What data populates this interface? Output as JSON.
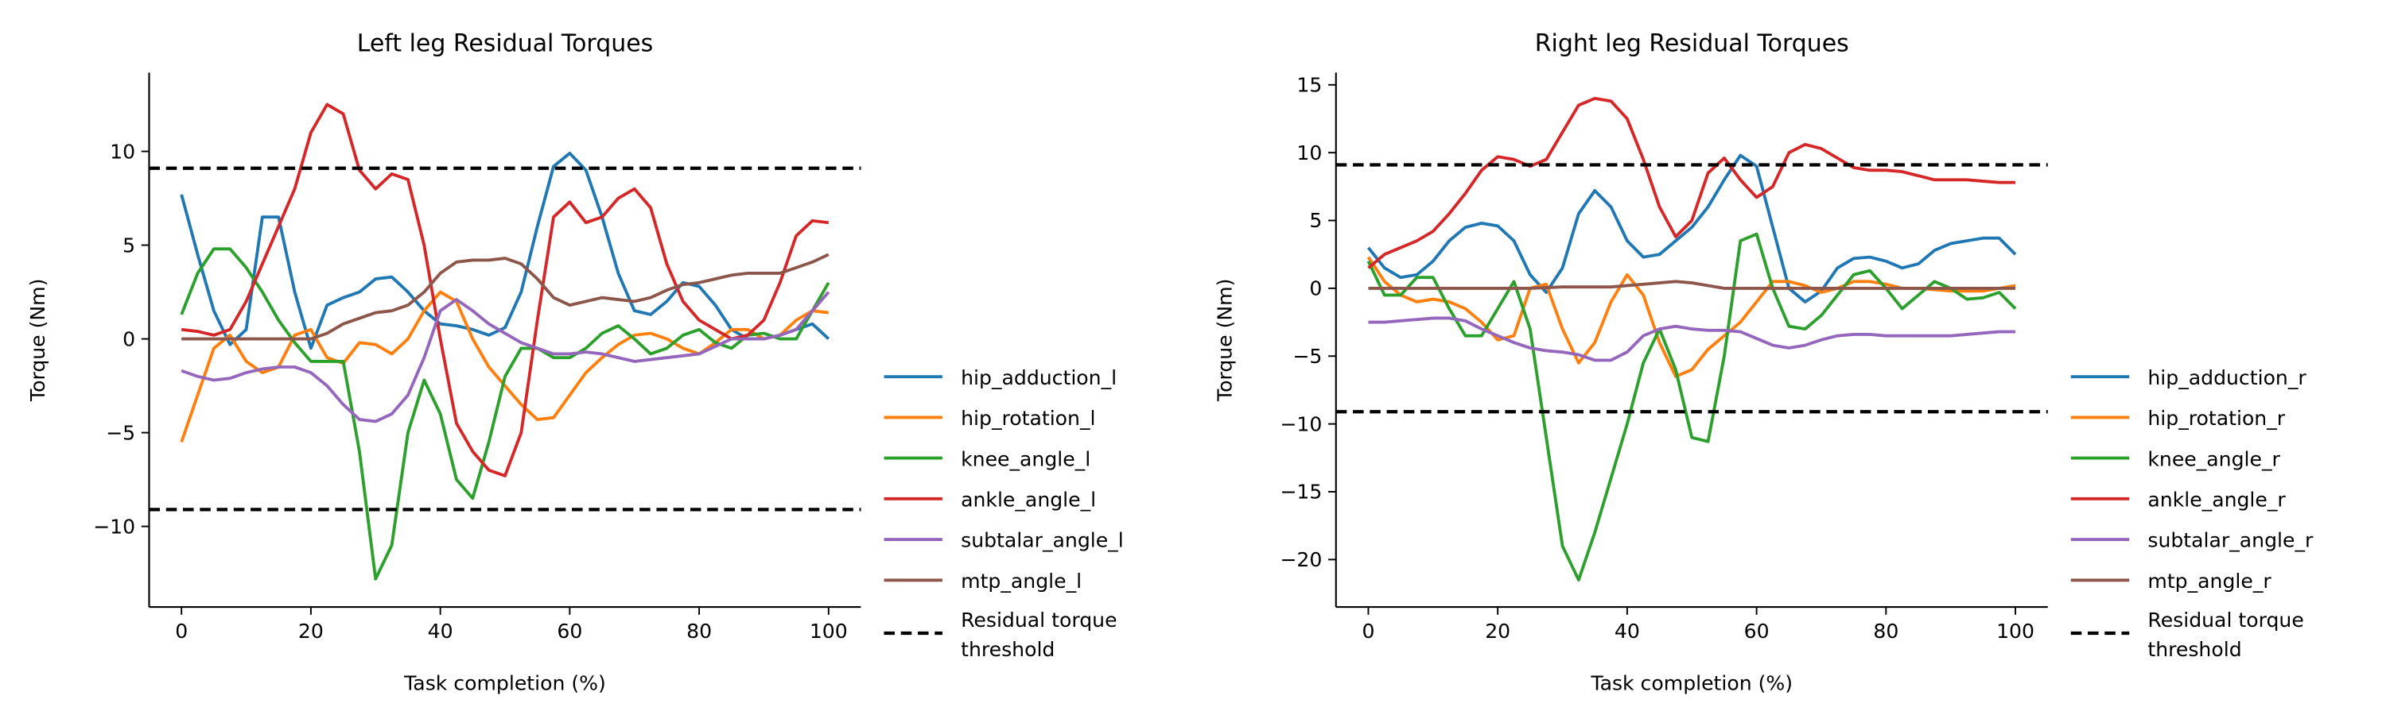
{
  "chart_data": [
    {
      "type": "line",
      "title": "Left leg Residual Torques",
      "xlabel": "Task completion (%)",
      "ylabel": "Torque (Nm)",
      "xlim": [
        -5,
        105
      ],
      "ylim": [
        -14.3,
        14.2
      ],
      "xticks": [
        0,
        20,
        40,
        60,
        80,
        100
      ],
      "yticks": [
        {
          "value": -10,
          "label": "−10"
        },
        {
          "value": -5,
          "label": "−5"
        },
        0,
        5,
        10
      ],
      "x": [
        0,
        2.5,
        5,
        7.5,
        10,
        12.5,
        15,
        17.5,
        20,
        22.5,
        25,
        27.5,
        30,
        32.5,
        35,
        37.5,
        40,
        42.5,
        45,
        47.5,
        50,
        52.5,
        55,
        57.5,
        60,
        62.5,
        65,
        67.5,
        70,
        72.5,
        75,
        77.5,
        80,
        82.5,
        85,
        87.5,
        90,
        92.5,
        95,
        97.5,
        100
      ],
      "series": [
        {
          "name": "hip_adduction_l",
          "color": "#1f77b4",
          "values": [
            7.7,
            4.5,
            1.5,
            -0.3,
            0.5,
            6.5,
            6.5,
            2.5,
            -0.5,
            1.8,
            2.2,
            2.5,
            3.2,
            3.3,
            2.5,
            1.5,
            0.8,
            0.7,
            0.5,
            0.2,
            0.6,
            2.5,
            6,
            9.2,
            9.9,
            9,
            6.5,
            3.5,
            1.5,
            1.3,
            2,
            3,
            2.8,
            1.8,
            0.5,
            0,
            0,
            0.2,
            0.5,
            0.8,
            0
          ]
        },
        {
          "name": "hip_rotation_l",
          "color": "#ff7f0e",
          "values": [
            -5.5,
            -3,
            -0.5,
            0.2,
            -1.2,
            -1.8,
            -1.5,
            0.2,
            0.5,
            -1,
            -1.3,
            -0.2,
            -0.3,
            -0.8,
            0,
            1.5,
            2.5,
            2,
            0,
            -1.5,
            -2.5,
            -3.5,
            -4.3,
            -4.2,
            -3,
            -1.8,
            -1,
            -0.3,
            0.2,
            0.3,
            0,
            -0.5,
            -0.8,
            -0.2,
            0.5,
            0.5,
            0,
            0.2,
            1,
            1.5,
            1.4
          ]
        },
        {
          "name": "knee_angle_l",
          "color": "#2ca02c",
          "values": [
            1.3,
            3.5,
            4.8,
            4.8,
            3.8,
            2.5,
            1,
            -0.2,
            -1.2,
            -1.2,
            -1.2,
            -6,
            -12.8,
            -11,
            -5,
            -2.2,
            -4,
            -7.5,
            -8.5,
            -5.5,
            -2,
            -0.5,
            -0.5,
            -1,
            -1,
            -0.5,
            0.3,
            0.7,
            0,
            -0.8,
            -0.5,
            0.2,
            0.5,
            -0.2,
            -0.5,
            0.2,
            0.3,
            0,
            0,
            1.5,
            3
          ]
        },
        {
          "name": "ankle_angle_l",
          "color": "#d62728",
          "values": [
            0.5,
            0.4,
            0.2,
            0.5,
            2,
            4,
            6,
            8,
            11,
            12.5,
            12,
            9,
            8,
            8.8,
            8.5,
            5,
            0,
            -4.5,
            -6,
            -7,
            -7.3,
            -5,
            1,
            6.5,
            7.3,
            6.2,
            6.5,
            7.5,
            8,
            7,
            4,
            2,
            1,
            0.5,
            0,
            0.2,
            1,
            3,
            5.5,
            6.3,
            6.2
          ]
        },
        {
          "name": "subtalar_angle_l",
          "color": "#9467bd",
          "values": [
            -1.7,
            -2,
            -2.2,
            -2.1,
            -1.8,
            -1.6,
            -1.5,
            -1.5,
            -1.8,
            -2.5,
            -3.5,
            -4.3,
            -4.4,
            -4,
            -3,
            -1,
            1.5,
            2.1,
            1.5,
            0.8,
            0.3,
            -0.2,
            -0.5,
            -0.8,
            -0.8,
            -0.7,
            -0.8,
            -1,
            -1.2,
            -1.1,
            -1,
            -0.9,
            -0.8,
            -0.4,
            0,
            0,
            0,
            0.2,
            0.5,
            1.5,
            2.5
          ]
        },
        {
          "name": "mtp_angle_l",
          "color": "#8c564b",
          "values": [
            0,
            0,
            0,
            0,
            0,
            0,
            0,
            0,
            0,
            0.3,
            0.8,
            1.1,
            1.4,
            1.5,
            1.8,
            2.5,
            3.5,
            4.1,
            4.2,
            4.2,
            4.3,
            4,
            3.2,
            2.2,
            1.8,
            2,
            2.2,
            2.1,
            2,
            2.2,
            2.6,
            2.9,
            3,
            3.2,
            3.4,
            3.5,
            3.5,
            3.5,
            3.8,
            4.1,
            4.5
          ]
        }
      ],
      "threshold": {
        "name": "Residual torque\nthreshold",
        "color": "#000000",
        "values": [
          9.1,
          -9.1
        ]
      }
    },
    {
      "type": "line",
      "title": "Right leg Residual Torques",
      "xlabel": "Task completion (%)",
      "ylabel": "Torque (Nm)",
      "xlim": [
        -5,
        105
      ],
      "ylim": [
        -23.5,
        15.9
      ],
      "xticks": [
        0,
        20,
        40,
        60,
        80,
        100
      ],
      "yticks": [
        {
          "value": -20,
          "label": "−20"
        },
        {
          "value": -15,
          "label": "−15"
        },
        {
          "value": -10,
          "label": "−10"
        },
        {
          "value": -5,
          "label": "−5"
        },
        0,
        5,
        10,
        15
      ],
      "x": [
        0,
        2.5,
        5,
        7.5,
        10,
        12.5,
        15,
        17.5,
        20,
        22.5,
        25,
        27.5,
        30,
        32.5,
        35,
        37.5,
        40,
        42.5,
        45,
        47.5,
        50,
        52.5,
        55,
        57.5,
        60,
        62.5,
        65,
        67.5,
        70,
        72.5,
        75,
        77.5,
        80,
        82.5,
        85,
        87.5,
        90,
        92.5,
        95,
        97.5,
        100
      ],
      "series": [
        {
          "name": "hip_adduction_r",
          "color": "#1f77b4",
          "values": [
            3,
            1.5,
            0.8,
            1,
            2,
            3.5,
            4.5,
            4.8,
            4.6,
            3.5,
            1,
            -0.3,
            1.5,
            5.5,
            7.2,
            6,
            3.5,
            2.3,
            2.5,
            3.5,
            4.5,
            6,
            8,
            9.8,
            9,
            4.5,
            0,
            -1,
            -0.2,
            1.5,
            2.2,
            2.3,
            2,
            1.5,
            1.8,
            2.8,
            3.3,
            3.5,
            3.7,
            3.7,
            2.5
          ]
        },
        {
          "name": "hip_rotation_r",
          "color": "#ff7f0e",
          "values": [
            2.3,
            0.5,
            -0.5,
            -1,
            -0.8,
            -1,
            -1.5,
            -2.5,
            -3.8,
            -3.5,
            0,
            0.3,
            -3,
            -5.5,
            -4,
            -1,
            1,
            -0.5,
            -4,
            -6.5,
            -6,
            -4.5,
            -3.5,
            -2.5,
            -1,
            0.5,
            0.5,
            0.2,
            -0.3,
            0,
            0.5,
            0.5,
            0.3,
            0,
            0,
            -0.1,
            -0.2,
            -0.2,
            -0.2,
            0,
            0.2
          ]
        },
        {
          "name": "knee_angle_r",
          "color": "#2ca02c",
          "values": [
            2,
            -0.5,
            -0.5,
            0.8,
            0.8,
            -1.5,
            -3.5,
            -3.5,
            -1.5,
            0.5,
            -3,
            -11,
            -19,
            -21.5,
            -18,
            -14,
            -10,
            -5.5,
            -3,
            -6,
            -11,
            -11.3,
            -5,
            3.5,
            4,
            0,
            -2.8,
            -3,
            -2,
            -0.5,
            1,
            1.3,
            0,
            -1.5,
            -0.5,
            0.5,
            0,
            -0.8,
            -0.7,
            -0.3,
            -1.5
          ]
        },
        {
          "name": "ankle_angle_r",
          "color": "#d62728",
          "values": [
            1.5,
            2.5,
            3,
            3.5,
            4.2,
            5.5,
            7,
            8.7,
            9.7,
            9.5,
            9,
            9.5,
            11.5,
            13.5,
            14,
            13.8,
            12.5,
            9.5,
            6,
            3.8,
            5,
            8.5,
            9.6,
            8,
            6.7,
            7.5,
            10,
            10.6,
            10.3,
            9.6,
            8.9,
            8.7,
            8.7,
            8.6,
            8.3,
            8,
            8,
            8,
            7.9,
            7.8,
            7.8
          ]
        },
        {
          "name": "subtalar_angle_r",
          "color": "#9467bd",
          "values": [
            -2.5,
            -2.5,
            -2.4,
            -2.3,
            -2.2,
            -2.2,
            -2.4,
            -3,
            -3.5,
            -4,
            -4.4,
            -4.6,
            -4.7,
            -4.9,
            -5.3,
            -5.3,
            -4.7,
            -3.5,
            -3,
            -2.8,
            -3,
            -3.1,
            -3.1,
            -3.2,
            -3.7,
            -4.2,
            -4.4,
            -4.2,
            -3.8,
            -3.5,
            -3.4,
            -3.4,
            -3.5,
            -3.5,
            -3.5,
            -3.5,
            -3.5,
            -3.4,
            -3.3,
            -3.2,
            -3.2
          ]
        },
        {
          "name": "mtp_angle_r",
          "color": "#8c564b",
          "values": [
            0,
            0,
            0,
            0,
            0,
            0,
            0,
            0,
            0,
            0,
            0,
            0.05,
            0.1,
            0.1,
            0.1,
            0.1,
            0.2,
            0.3,
            0.4,
            0.5,
            0.4,
            0.2,
            0,
            0,
            0,
            0,
            0,
            0,
            0,
            0,
            0,
            0,
            0,
            0,
            0,
            0,
            0,
            0,
            0,
            0,
            0
          ]
        }
      ],
      "threshold": {
        "name": "Residual torque\nthreshold",
        "color": "#000000",
        "values": [
          9.1,
          -9.1
        ]
      }
    }
  ]
}
